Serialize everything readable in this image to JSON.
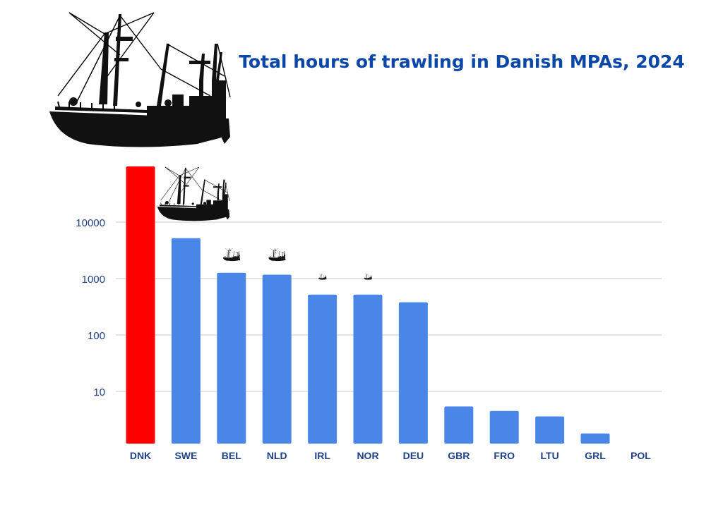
{
  "colors": {
    "title": "#0a47a8",
    "axis_text": "#1f3f86",
    "bar": "#4a86e8",
    "highlight_bar": "#ff0000",
    "grid": "#c8c8c8",
    "ship": "#111111"
  },
  "icons": {
    "ship": "fishing-trawler-icon"
  },
  "chart_data": {
    "type": "bar",
    "title": "Total hours of trawling in Danish MPAs, 2024",
    "xlabel": "",
    "ylabel": "",
    "y_scale": "log",
    "ylim": [
      1.25,
      100000
    ],
    "yticks": [
      10,
      100,
      1000,
      10000
    ],
    "ytick_labels": [
      "10",
      "100",
      "1000",
      "10000"
    ],
    "grid": true,
    "highlight_category": "DNK",
    "categories": [
      "DNK",
      "SWE",
      "BEL",
      "NLD",
      "IRL",
      "NOR",
      "DEU",
      "GBR",
      "FRO",
      "LTU",
      "GRL",
      "POL"
    ],
    "values": [
      100000,
      5200,
      1270,
      1170,
      520,
      520,
      380,
      5.4,
      4.5,
      3.6,
      1.8,
      0
    ],
    "ship_icons": [
      {
        "category": "DNK",
        "size": "xlarge"
      },
      {
        "category": "SWE",
        "size": "large"
      },
      {
        "category": "BEL",
        "size": "small"
      },
      {
        "category": "NLD",
        "size": "small"
      },
      {
        "category": "IRL",
        "size": "tiny"
      },
      {
        "category": "NOR",
        "size": "tiny"
      }
    ]
  }
}
